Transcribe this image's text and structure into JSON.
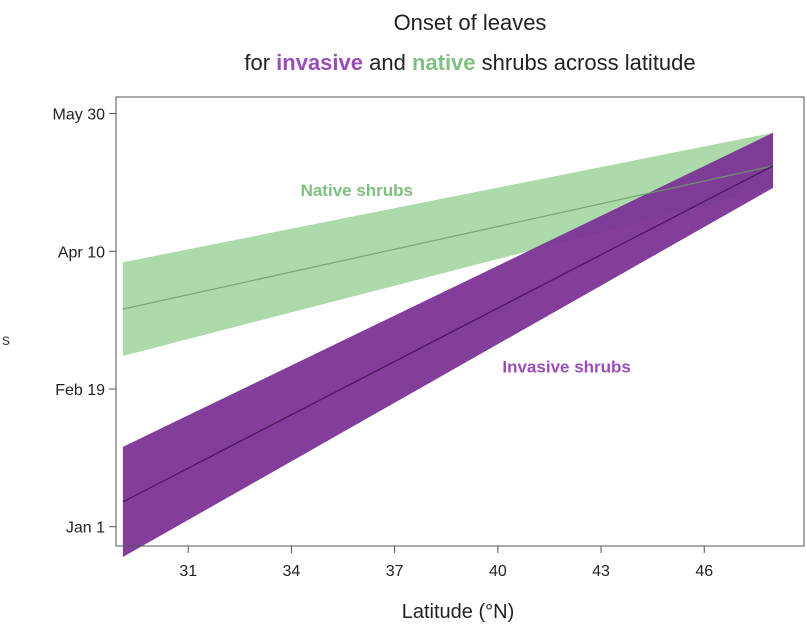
{
  "chart_data": {
    "type": "line",
    "title_line1": "Onset of leaves",
    "title_line2": {
      "for": "for ",
      "invasive": "invasive",
      "and": " and ",
      "native": "native",
      "rest": " shrubs across latitude"
    },
    "xlabel": "Latitude (°N)",
    "ylabel": "",
    "left_edge_text": "s",
    "xlim": [
      28.9,
      48.9
    ],
    "ylim": [
      -7,
      156
    ],
    "x_ticks": [
      {
        "value": 31,
        "label": "31"
      },
      {
        "value": 34,
        "label": "34"
      },
      {
        "value": 37,
        "label": "37"
      },
      {
        "value": 40,
        "label": "40"
      },
      {
        "value": 43,
        "label": "43"
      },
      {
        "value": 46,
        "label": "46"
      }
    ],
    "y_ticks": [
      {
        "value": 0,
        "label": "Jan 1"
      },
      {
        "value": 50,
        "label": "Feb 19"
      },
      {
        "value": 100,
        "label": "Apr 10"
      },
      {
        "value": 150,
        "label": "May 30"
      }
    ],
    "grid": false,
    "series": [
      {
        "name": "Native shrubs",
        "color": "#7fbf7f",
        "band_color": "#a9d8a5",
        "x": [
          29.1,
          48.0
        ],
        "y": [
          79,
          131
        ],
        "ci_lower": [
          62,
          123
        ],
        "ci_upper": [
          96,
          143
        ]
      },
      {
        "name": "Invasive shrubs",
        "color": "#8a3fa5",
        "band_color": "#7a2f94",
        "x": [
          29.1,
          48.0
        ],
        "y": [
          9,
          131
        ],
        "ci_lower": [
          -11,
          123
        ],
        "ci_upper": [
          29,
          143
        ]
      }
    ],
    "label_colors": {
      "invasive": "#9b4db7",
      "native": "#7fbf7f"
    },
    "annotations": [
      {
        "series": "Native shrubs",
        "text": "Native shrubs",
        "x": 35.9,
        "y": 120
      },
      {
        "series": "Invasive shrubs",
        "text": "Invasive shrubs",
        "x": 42.0,
        "y": 56
      }
    ]
  }
}
